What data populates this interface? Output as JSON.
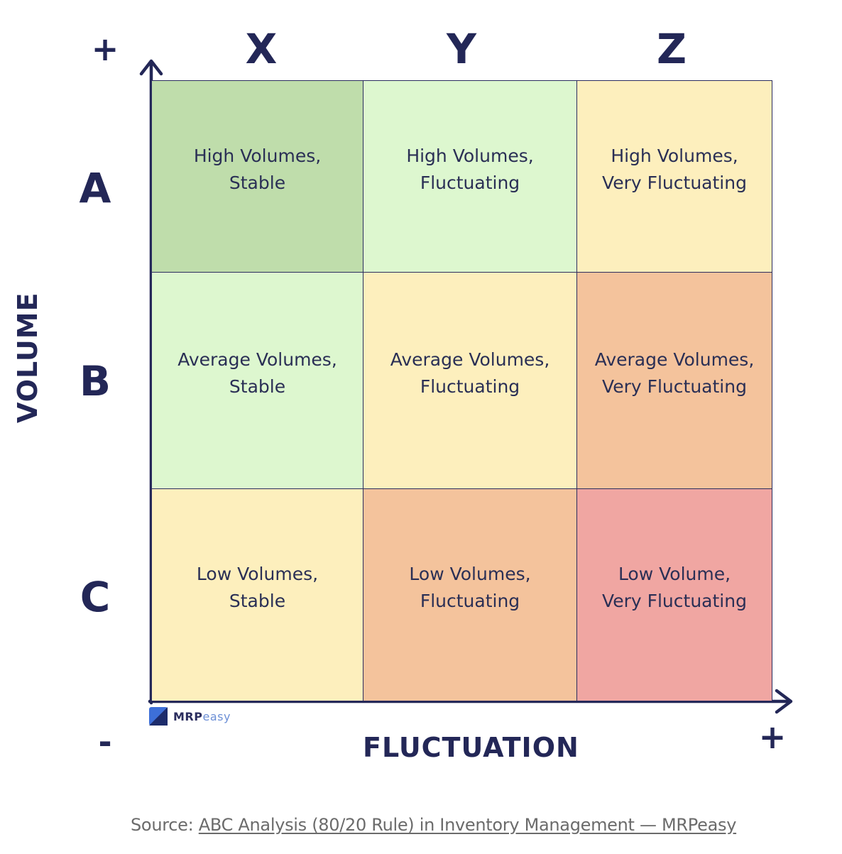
{
  "columns": [
    "X",
    "Y",
    "Z"
  ],
  "rows": [
    "A",
    "B",
    "C"
  ],
  "y_axis": {
    "label": "VOLUME",
    "top_sign": "+",
    "bottom_sign": "-"
  },
  "x_axis": {
    "label": "FLUCTUATION",
    "right_sign": "+"
  },
  "cells": [
    {
      "text": "High Volumes,\nStable",
      "color": "#bfddab"
    },
    {
      "text": "High Volumes,\nFluctuating",
      "color": "#ddf7cf"
    },
    {
      "text": "High Volumes,\nVery Fluctuating",
      "color": "#fdefbd"
    },
    {
      "text": "Average Volumes,\nStable",
      "color": "#ddf7cf"
    },
    {
      "text": "Average Volumes,\nFluctuating",
      "color": "#fdefbd"
    },
    {
      "text": "Average Volumes,\nVery Fluctuating",
      "color": "#f4c39c"
    },
    {
      "text": "Low Volumes,\nStable",
      "color": "#fdefbd"
    },
    {
      "text": "Low Volumes,\nFluctuating",
      "color": "#f4c39c"
    },
    {
      "text": "Low Volume,\nVery Fluctuating",
      "color": "#f0a6a2"
    }
  ],
  "logo": {
    "brand_bold": "MRP",
    "brand_light": "easy"
  },
  "source": {
    "prefix": "Source: ",
    "link_text": "ABC Analysis (80/20 Rule) in Inventory Management — MRPeasy"
  }
}
